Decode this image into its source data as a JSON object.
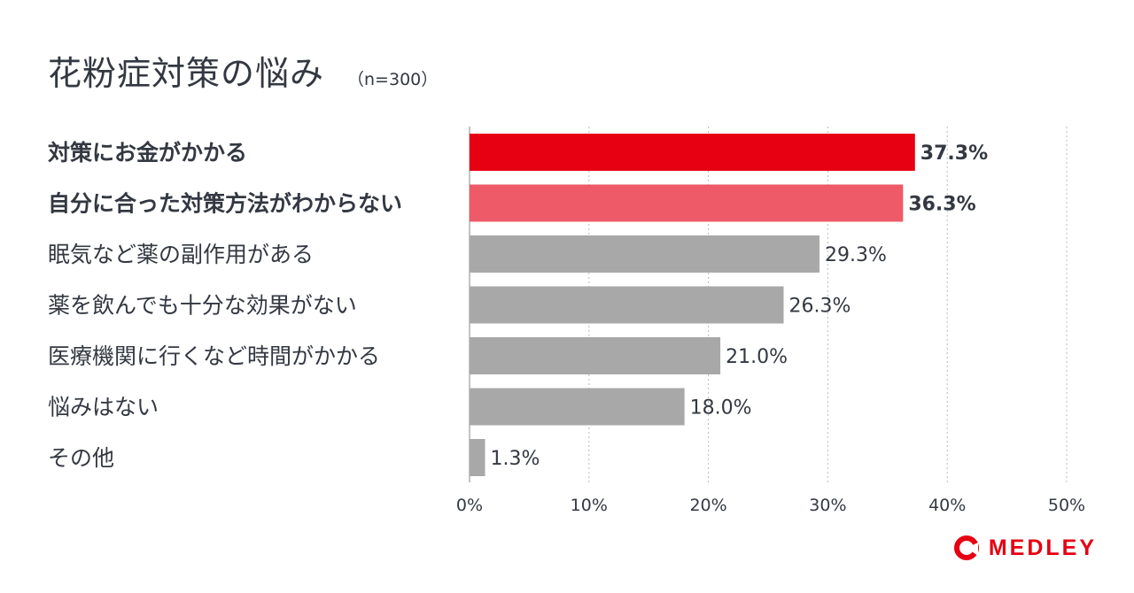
{
  "colors": {
    "primary": "#e60012",
    "secondary": "#ee5a67",
    "neutral": "#a8a8a8",
    "text": "#333842",
    "grid": "#bbbbbb",
    "logo": "#e60012"
  },
  "icon": "medley-logo-icon",
  "logo_text": "MEDLEY",
  "chart_data": {
    "type": "bar",
    "orientation": "horizontal",
    "title": "花粉症対策の悩み",
    "subtitle": "（n=300）",
    "categories": [
      "対策にお金がかかる",
      "自分に合った対策方法がわからない",
      "眠気など薬の副作用がある",
      "薬を飲んでも十分な効果がない",
      "医療機関に行くなど時間がかかる",
      "悩みはない",
      "その他"
    ],
    "values": [
      37.3,
      36.3,
      29.3,
      26.3,
      21.0,
      18.0,
      1.3
    ],
    "value_labels": [
      "37.3%",
      "36.3%",
      "29.3%",
      "26.3%",
      "21.0%",
      "18.0%",
      "1.3%"
    ],
    "highlight": [
      "primary",
      "secondary",
      "neutral",
      "neutral",
      "neutral",
      "neutral",
      "neutral"
    ],
    "bold": [
      true,
      true,
      false,
      false,
      false,
      false,
      false
    ],
    "xlim": [
      0,
      50
    ],
    "xticks": [
      0,
      10,
      20,
      30,
      40,
      50
    ],
    "xtick_labels": [
      "0%",
      "10%",
      "20%",
      "30%",
      "40%",
      "50%"
    ],
    "grid": "vertical-dotted",
    "legend": "none"
  }
}
